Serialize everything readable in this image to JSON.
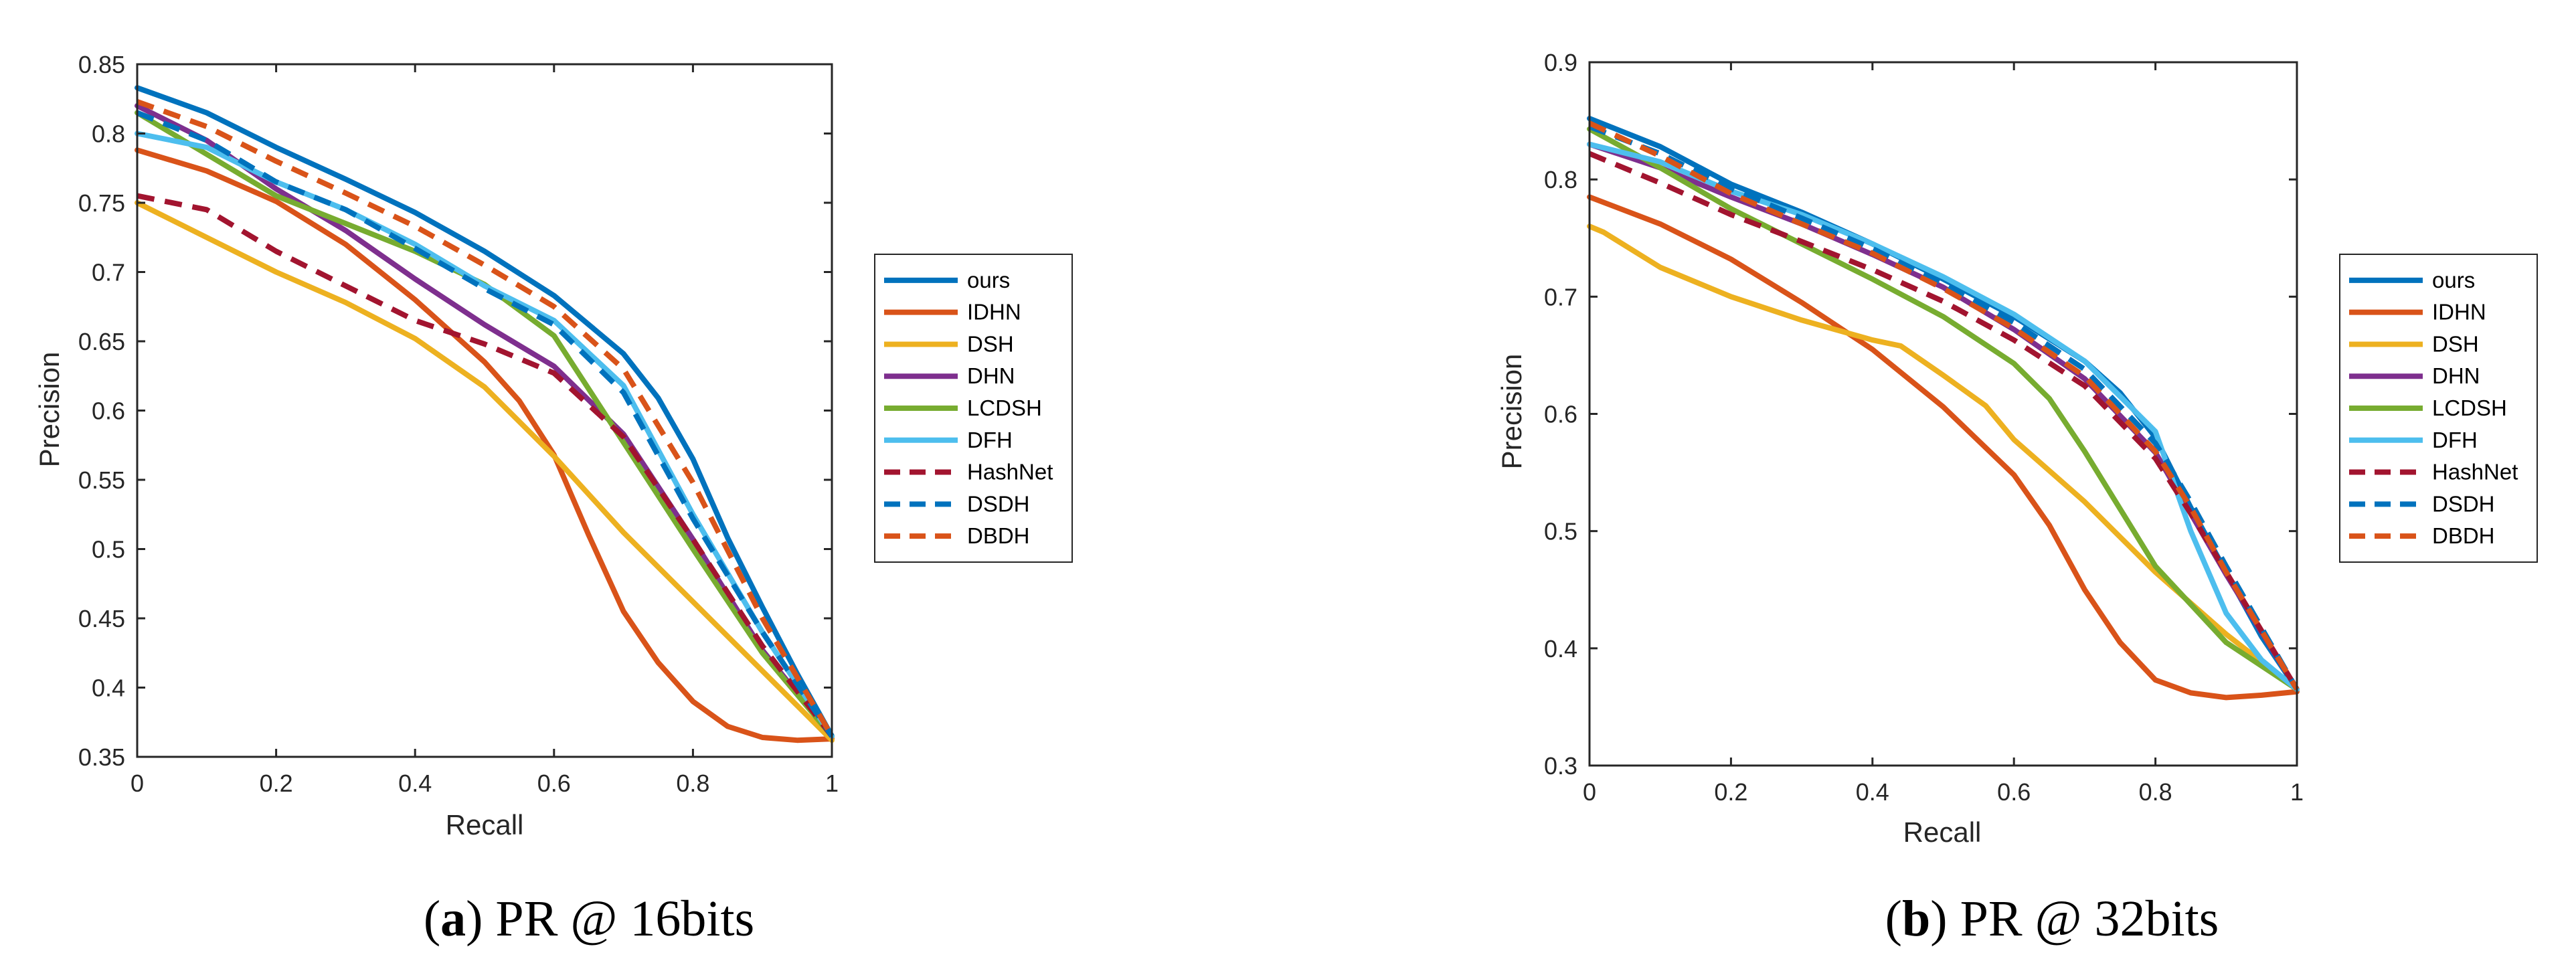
{
  "chart_data": [
    {
      "type": "line",
      "title": "",
      "xlabel": "Recall",
      "ylabel": "Precision",
      "xlim": [
        0,
        1
      ],
      "ylim": [
        0.35,
        0.85
      ],
      "xticks": [
        "0",
        "0.2",
        "0.4",
        "0.6",
        "0.8",
        "1"
      ],
      "yticks": [
        "0.35",
        "0.4",
        "0.45",
        "0.5",
        "0.55",
        "0.6",
        "0.65",
        "0.7",
        "0.75",
        "0.8",
        "0.85"
      ],
      "caption": {
        "open": "(",
        "letter": "a",
        "rest": ") PR @ 16bits"
      },
      "legend": "right-outside",
      "series": [
        {
          "name": "ours",
          "color": "#0072BD",
          "dashed": false,
          "x": [
            0,
            0.1,
            0.2,
            0.3,
            0.4,
            0.5,
            0.6,
            0.7,
            0.75,
            0.8,
            0.85,
            0.9,
            0.95,
            1.0
          ],
          "y": [
            0.833,
            0.815,
            0.79,
            0.767,
            0.743,
            0.715,
            0.683,
            0.641,
            0.609,
            0.565,
            0.508,
            0.458,
            0.41,
            0.365
          ]
        },
        {
          "name": "IDHN",
          "color": "#D95319",
          "dashed": false,
          "x": [
            0,
            0.1,
            0.2,
            0.3,
            0.4,
            0.5,
            0.55,
            0.6,
            0.65,
            0.7,
            0.75,
            0.8,
            0.85,
            0.9,
            0.95,
            1.0
          ],
          "y": [
            0.788,
            0.773,
            0.751,
            0.72,
            0.68,
            0.635,
            0.607,
            0.568,
            0.51,
            0.455,
            0.418,
            0.39,
            0.372,
            0.364,
            0.362,
            0.363
          ]
        },
        {
          "name": "DSH",
          "color": "#EDB120",
          "dashed": false,
          "x": [
            0,
            0.1,
            0.2,
            0.3,
            0.4,
            0.5,
            0.6,
            0.7,
            0.8,
            0.9,
            1.0
          ],
          "y": [
            0.75,
            0.725,
            0.7,
            0.678,
            0.652,
            0.617,
            0.567,
            0.512,
            0.462,
            0.412,
            0.362
          ]
        },
        {
          "name": "DHN",
          "color": "#7E2F8E",
          "dashed": false,
          "x": [
            0,
            0.1,
            0.2,
            0.3,
            0.4,
            0.5,
            0.6,
            0.7,
            0.8,
            0.9,
            1.0
          ],
          "y": [
            0.82,
            0.795,
            0.76,
            0.73,
            0.695,
            0.662,
            0.632,
            0.583,
            0.507,
            0.427,
            0.365
          ]
        },
        {
          "name": "LCDSH",
          "color": "#77AC30",
          "dashed": false,
          "x": [
            0,
            0.1,
            0.2,
            0.3,
            0.4,
            0.5,
            0.6,
            0.7,
            0.8,
            0.9,
            1.0
          ],
          "y": [
            0.815,
            0.785,
            0.755,
            0.735,
            0.715,
            0.691,
            0.654,
            0.577,
            0.5,
            0.425,
            0.365
          ]
        },
        {
          "name": "DFH",
          "color": "#4DBEEE",
          "dashed": false,
          "x": [
            0,
            0.1,
            0.2,
            0.3,
            0.4,
            0.5,
            0.6,
            0.7,
            0.8,
            0.9,
            1.0
          ],
          "y": [
            0.8,
            0.79,
            0.765,
            0.745,
            0.72,
            0.69,
            0.665,
            0.618,
            0.525,
            0.44,
            0.365
          ]
        },
        {
          "name": "HashNet",
          "color": "#A2142F",
          "dashed": true,
          "x": [
            0,
            0.1,
            0.2,
            0.3,
            0.4,
            0.5,
            0.6,
            0.7,
            0.8,
            0.9,
            1.0
          ],
          "y": [
            0.755,
            0.745,
            0.715,
            0.69,
            0.665,
            0.648,
            0.627,
            0.581,
            0.507,
            0.43,
            0.365
          ]
        },
        {
          "name": "DSDH",
          "color": "#0072BD",
          "dashed": true,
          "x": [
            0,
            0.1,
            0.2,
            0.3,
            0.4,
            0.5,
            0.6,
            0.7,
            0.8,
            0.9,
            1.0
          ],
          "y": [
            0.815,
            0.795,
            0.765,
            0.745,
            0.717,
            0.688,
            0.662,
            0.613,
            0.522,
            0.44,
            0.365
          ]
        },
        {
          "name": "DBDH",
          "color": "#D95319",
          "dashed": true,
          "x": [
            0,
            0.1,
            0.2,
            0.3,
            0.4,
            0.5,
            0.6,
            0.7,
            0.8,
            0.9,
            1.0
          ],
          "y": [
            0.823,
            0.805,
            0.78,
            0.757,
            0.733,
            0.705,
            0.675,
            0.63,
            0.548,
            0.45,
            0.365
          ]
        }
      ]
    },
    {
      "type": "line",
      "title": "",
      "xlabel": "Recall",
      "ylabel": "Precision",
      "xlim": [
        0,
        1
      ],
      "ylim": [
        0.3,
        0.9
      ],
      "xticks": [
        "0",
        "0.2",
        "0.4",
        "0.6",
        "0.8",
        "1"
      ],
      "yticks": [
        "0.3",
        "0.4",
        "0.5",
        "0.6",
        "0.7",
        "0.8",
        "0.9"
      ],
      "caption": {
        "open": "(",
        "letter": "b",
        "rest": ") PR @ 32bits"
      },
      "legend": "right-outside",
      "series": [
        {
          "name": "ours",
          "color": "#0072BD",
          "dashed": false,
          "x": [
            0,
            0.1,
            0.2,
            0.3,
            0.4,
            0.5,
            0.6,
            0.7,
            0.75,
            0.8,
            0.85,
            0.9,
            0.95,
            1.0
          ],
          "y": [
            0.852,
            0.828,
            0.796,
            0.772,
            0.745,
            0.715,
            0.683,
            0.645,
            0.618,
            0.58,
            0.52,
            0.465,
            0.41,
            0.365
          ]
        },
        {
          "name": "IDHN",
          "color": "#D95319",
          "dashed": false,
          "x": [
            0,
            0.1,
            0.2,
            0.3,
            0.4,
            0.5,
            0.6,
            0.65,
            0.7,
            0.75,
            0.8,
            0.85,
            0.9,
            0.95,
            1.0
          ],
          "y": [
            0.785,
            0.762,
            0.732,
            0.695,
            0.655,
            0.606,
            0.548,
            0.505,
            0.45,
            0.405,
            0.373,
            0.362,
            0.358,
            0.36,
            0.363
          ]
        },
        {
          "name": "DSH",
          "color": "#EDB120",
          "dashed": false,
          "x": [
            0,
            0.02,
            0.1,
            0.2,
            0.3,
            0.4,
            0.44,
            0.5,
            0.56,
            0.6,
            0.7,
            0.8,
            0.9,
            1.0
          ],
          "y": [
            0.76,
            0.755,
            0.725,
            0.7,
            0.68,
            0.663,
            0.658,
            0.633,
            0.607,
            0.578,
            0.525,
            0.465,
            0.412,
            0.365
          ]
        },
        {
          "name": "DHN",
          "color": "#7E2F8E",
          "dashed": false,
          "x": [
            0,
            0.1,
            0.2,
            0.3,
            0.4,
            0.5,
            0.6,
            0.7,
            0.8,
            0.85,
            0.9,
            1.0
          ],
          "y": [
            0.83,
            0.81,
            0.785,
            0.762,
            0.736,
            0.708,
            0.672,
            0.63,
            0.567,
            0.515,
            0.463,
            0.365
          ]
        },
        {
          "name": "LCDSH",
          "color": "#77AC30",
          "dashed": false,
          "x": [
            0,
            0.1,
            0.2,
            0.3,
            0.4,
            0.5,
            0.6,
            0.65,
            0.7,
            0.8,
            0.9,
            1.0
          ],
          "y": [
            0.843,
            0.81,
            0.775,
            0.745,
            0.715,
            0.683,
            0.643,
            0.613,
            0.568,
            0.47,
            0.405,
            0.365
          ]
        },
        {
          "name": "DFH",
          "color": "#4DBEEE",
          "dashed": false,
          "x": [
            0,
            0.1,
            0.2,
            0.3,
            0.4,
            0.5,
            0.6,
            0.7,
            0.8,
            0.85,
            0.9,
            0.95,
            1.0
          ],
          "y": [
            0.83,
            0.815,
            0.79,
            0.77,
            0.745,
            0.717,
            0.685,
            0.645,
            0.585,
            0.5,
            0.43,
            0.39,
            0.365
          ]
        },
        {
          "name": "HashNet",
          "color": "#A2142F",
          "dashed": true,
          "x": [
            0,
            0.1,
            0.2,
            0.3,
            0.4,
            0.5,
            0.6,
            0.7,
            0.8,
            0.85,
            0.9,
            1.0
          ],
          "y": [
            0.822,
            0.797,
            0.77,
            0.747,
            0.723,
            0.696,
            0.663,
            0.624,
            0.562,
            0.515,
            0.465,
            0.365
          ]
        },
        {
          "name": "DSDH",
          "color": "#0072BD",
          "dashed": true,
          "x": [
            0,
            0.1,
            0.2,
            0.3,
            0.4,
            0.5,
            0.6,
            0.7,
            0.8,
            0.85,
            0.9,
            1.0
          ],
          "y": [
            0.845,
            0.822,
            0.792,
            0.767,
            0.741,
            0.711,
            0.678,
            0.638,
            0.575,
            0.525,
            0.47,
            0.365
          ]
        },
        {
          "name": "DBDH",
          "color": "#D95319",
          "dashed": true,
          "x": [
            0,
            0.1,
            0.2,
            0.3,
            0.4,
            0.5,
            0.6,
            0.7,
            0.8,
            0.85,
            0.9,
            1.0
          ],
          "y": [
            0.848,
            0.82,
            0.788,
            0.762,
            0.737,
            0.707,
            0.673,
            0.632,
            0.568,
            0.52,
            0.465,
            0.365
          ]
        }
      ]
    }
  ]
}
